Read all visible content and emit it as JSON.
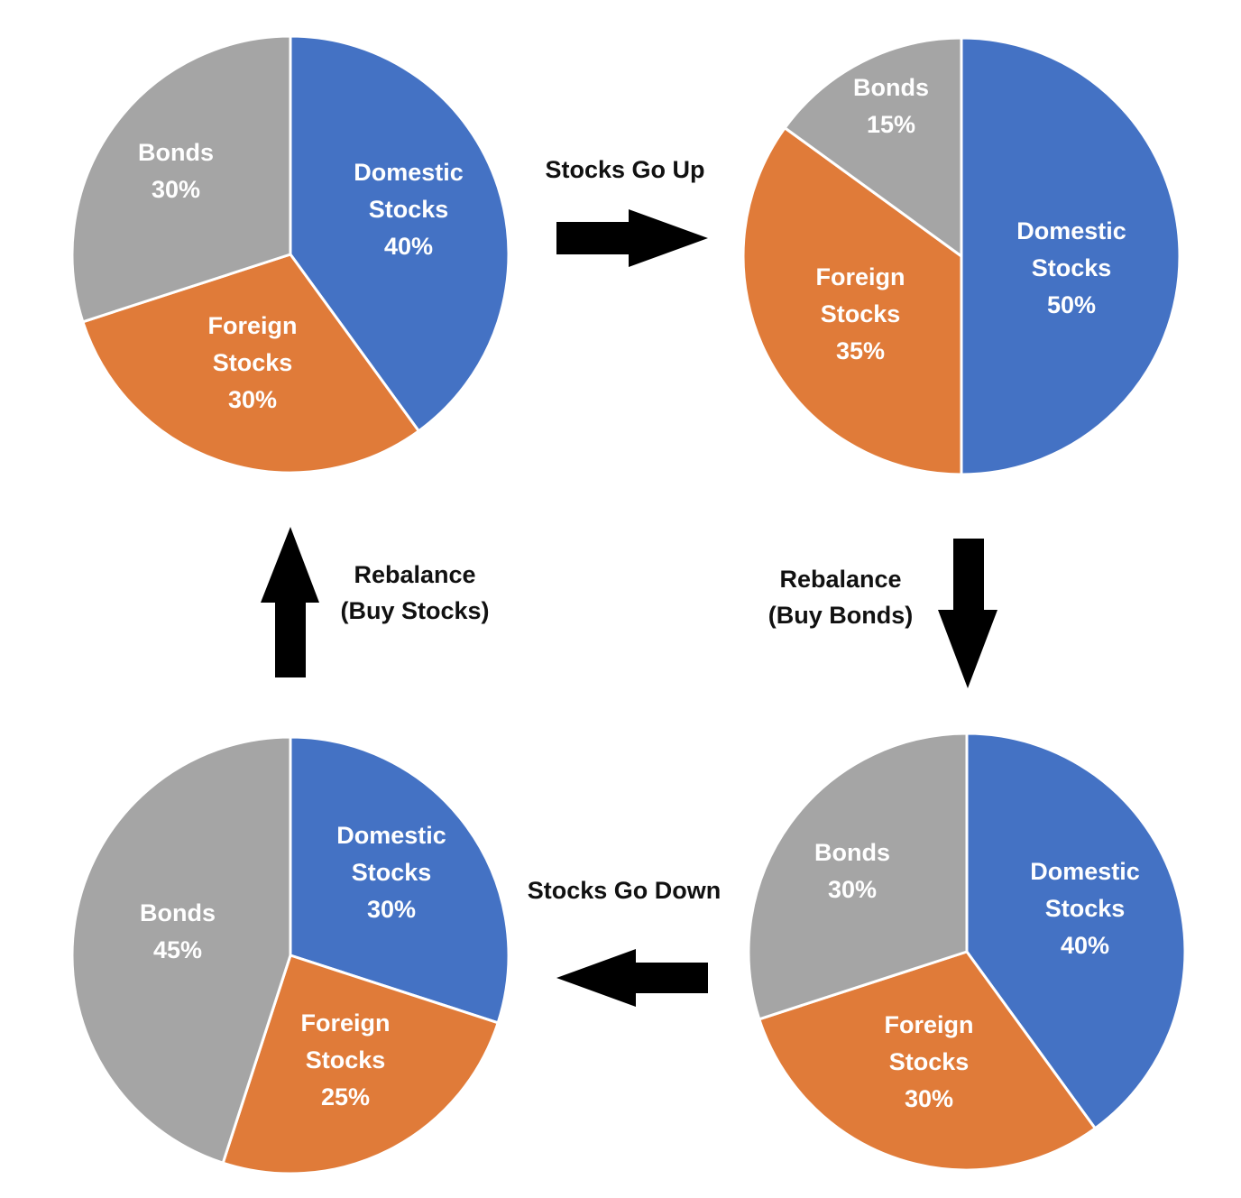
{
  "colors": {
    "domestic": "#4472C4",
    "foreign": "#E07B39",
    "bonds": "#A5A5A5",
    "arrow": "#000000",
    "divider": "#ffffff"
  },
  "chart_data": [
    {
      "type": "pie",
      "position": "top-left",
      "slices": [
        {
          "key": "domestic",
          "label": [
            "Domestic",
            "Stocks",
            "40%"
          ],
          "value": 40
        },
        {
          "key": "foreign",
          "label": [
            "Foreign",
            "Stocks",
            "30%"
          ],
          "value": 30
        },
        {
          "key": "bonds",
          "label": [
            "Bonds",
            "30%"
          ],
          "value": 30
        }
      ]
    },
    {
      "type": "pie",
      "position": "top-right",
      "slices": [
        {
          "key": "domestic",
          "label": [
            "Domestic",
            "Stocks",
            "50%"
          ],
          "value": 50
        },
        {
          "key": "foreign",
          "label": [
            "Foreign",
            "Stocks",
            "35%"
          ],
          "value": 35
        },
        {
          "key": "bonds",
          "label": [
            "Bonds",
            "15%"
          ],
          "value": 15
        }
      ]
    },
    {
      "type": "pie",
      "position": "bottom-right",
      "slices": [
        {
          "key": "domestic",
          "label": [
            "Domestic",
            "Stocks",
            "40%"
          ],
          "value": 40
        },
        {
          "key": "foreign",
          "label": [
            "Foreign",
            "Stocks",
            "30%"
          ],
          "value": 30
        },
        {
          "key": "bonds",
          "label": [
            "Bonds",
            "30%"
          ],
          "value": 30
        }
      ]
    },
    {
      "type": "pie",
      "position": "bottom-left",
      "slices": [
        {
          "key": "domestic",
          "label": [
            "Domestic",
            "Stocks",
            "30%"
          ],
          "value": 30
        },
        {
          "key": "foreign",
          "label": [
            "Foreign",
            "Stocks",
            "25%"
          ],
          "value": 25
        },
        {
          "key": "bonds",
          "label": [
            "Bonds",
            "45%"
          ],
          "value": 45
        }
      ]
    }
  ],
  "steps": [
    {
      "id": "stocks-go-up",
      "direction": "right",
      "lines": [
        "Stocks Go Up"
      ]
    },
    {
      "id": "rebalance-buy-bonds",
      "direction": "down",
      "lines": [
        "Rebalance",
        "(Buy Bonds)"
      ]
    },
    {
      "id": "stocks-go-down",
      "direction": "left",
      "lines": [
        "Stocks Go Down"
      ]
    },
    {
      "id": "rebalance-buy-stocks",
      "direction": "up",
      "lines": [
        "Rebalance",
        "(Buy Stocks)"
      ]
    }
  ]
}
